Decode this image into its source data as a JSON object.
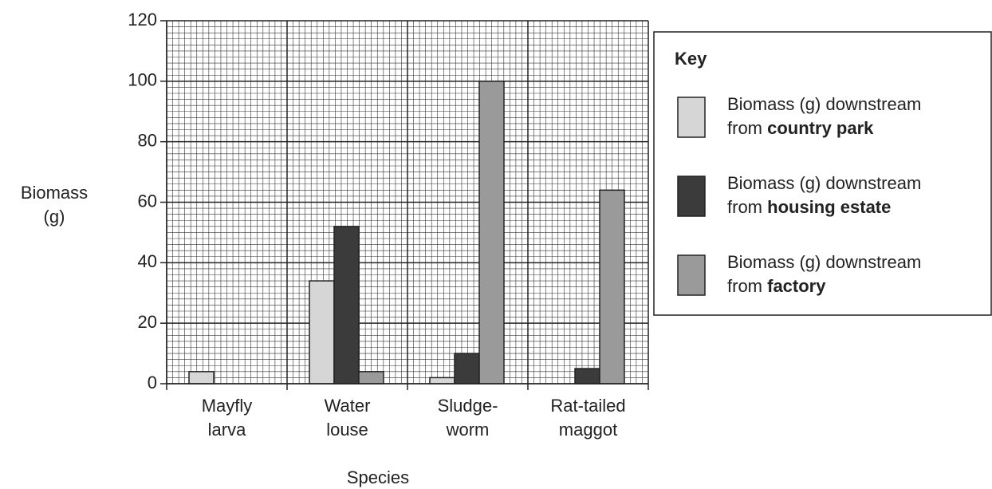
{
  "chart_data": {
    "type": "bar",
    "categories": [
      "Mayfly larva",
      "Water louse",
      "Sludge-worm",
      "Rat-tailed maggot"
    ],
    "series": [
      {
        "name": "Biomass (g) downstream from country park",
        "color": "#d6d6d6",
        "values": [
          4,
          34,
          2,
          0
        ]
      },
      {
        "name": "Biomass (g) downstream from housing estate",
        "color": "#3b3b3b",
        "values": [
          0,
          52,
          10,
          5
        ]
      },
      {
        "name": "Biomass (g) downstream from factory",
        "color": "#9a9a9a",
        "values": [
          0,
          4,
          100,
          64
        ]
      }
    ],
    "ylim": [
      0,
      120
    ],
    "yticks": [
      0,
      20,
      40,
      60,
      80,
      100,
      120
    ],
    "ylabel": "Biomass (g)",
    "xlabel": "Species",
    "legend_title": "Key",
    "grid": true
  }
}
